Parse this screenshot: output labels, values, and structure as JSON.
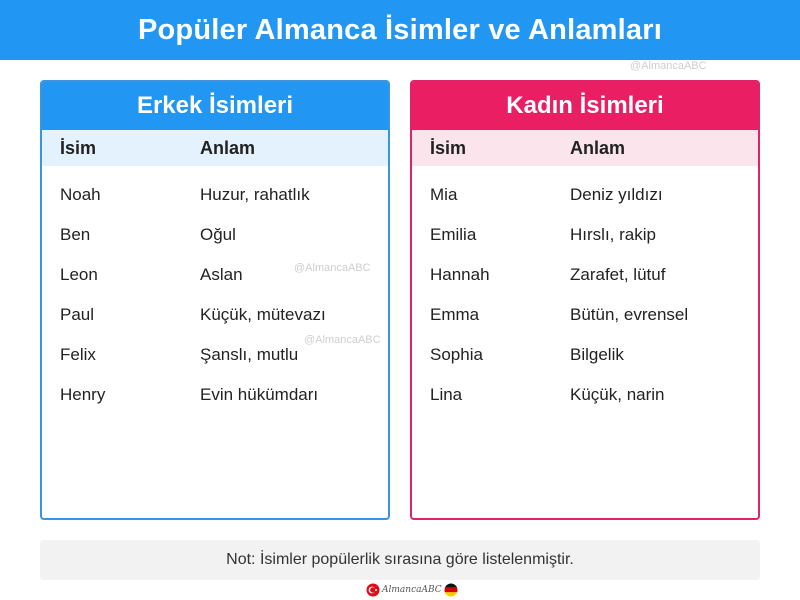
{
  "header": {
    "title": "Popüler Almanca İsimler ve Anlamları"
  },
  "watermark": "@AlmancaABC",
  "male": {
    "title": "Erkek İsimleri",
    "col_name": "İsim",
    "col_meaning": "Anlam",
    "rows": [
      {
        "name": "Noah",
        "meaning": "Huzur, rahatlık"
      },
      {
        "name": "Ben",
        "meaning": "Oğul"
      },
      {
        "name": "Leon",
        "meaning": "Aslan"
      },
      {
        "name": "Paul",
        "meaning": "Küçük, mütevazı"
      },
      {
        "name": "Felix",
        "meaning": "Şanslı, mutlu"
      },
      {
        "name": "Henry",
        "meaning": "Evin hükümdarı"
      }
    ]
  },
  "female": {
    "title": "Kadın İsimleri",
    "col_name": "İsim",
    "col_meaning": "Anlam",
    "rows": [
      {
        "name": "Mia",
        "meaning": "Deniz yıldızı"
      },
      {
        "name": "Emilia",
        "meaning": "Hırslı, rakip"
      },
      {
        "name": "Hannah",
        "meaning": "Zarafet, lütuf"
      },
      {
        "name": "Emma",
        "meaning": "Bütün, evrensel"
      },
      {
        "name": "Sophia",
        "meaning": "Bilgelik"
      },
      {
        "name": "Lina",
        "meaning": "Küçük, narin"
      }
    ]
  },
  "note": "Not: İsimler popülerlik sırasına göre listelenmiştir.",
  "footer": {
    "signature": "AlmancaABC",
    "icons": [
      "turkey-flag-icon",
      "germany-flag-icon"
    ]
  },
  "colors": {
    "header_blue": "#2196F3",
    "male_accent": "#2196F3",
    "female_accent": "#E91E63",
    "male_head_bg": "#e3f2fd",
    "female_head_bg": "#fce4ec"
  }
}
